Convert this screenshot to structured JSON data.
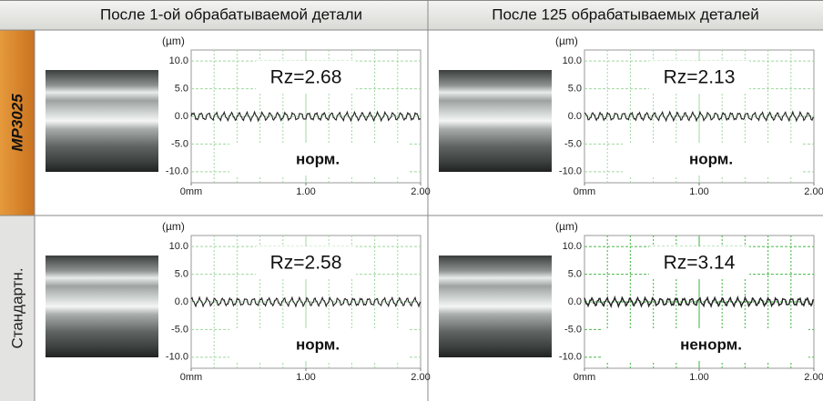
{
  "header": {
    "columns": [
      "После 1-ой обрабатываемой детали",
      "После 125 обрабатываемых деталей"
    ]
  },
  "rows": [
    {
      "label": "MP3025",
      "cells": [
        {
          "y_label": "(µm)",
          "ylim": [
            -12,
            12
          ],
          "xlim": [
            0,
            2
          ],
          "yticks": [
            {
              "value": 10,
              "label": "10.0"
            },
            {
              "value": 5,
              "label": "5.0"
            },
            {
              "value": 0,
              "label": "0.0"
            },
            {
              "value": -5,
              "label": "-5.0"
            },
            {
              "value": -10,
              "label": "-10.0"
            }
          ],
          "xticks": [
            {
              "value": 0,
              "label": "0mm"
            },
            {
              "value": 1,
              "label": "1.00"
            },
            {
              "value": 2,
              "label": "2.00"
            }
          ],
          "rz": "Rz=2.68",
          "verdict": "норм."
        },
        {
          "y_label": "(µm)",
          "ylim": [
            -12,
            12
          ],
          "xlim": [
            0,
            2
          ],
          "yticks": [
            {
              "value": 10,
              "label": "10.0"
            },
            {
              "value": 5,
              "label": "5.0"
            },
            {
              "value": 0,
              "label": "0.0"
            },
            {
              "value": -5,
              "label": "-5.0"
            },
            {
              "value": -10,
              "label": "-10.0"
            }
          ],
          "xticks": [
            {
              "value": 0,
              "label": "0mm"
            },
            {
              "value": 1,
              "label": "1.00"
            },
            {
              "value": 2,
              "label": "2.00"
            }
          ],
          "rz": "Rz=2.13",
          "verdict": "норм."
        }
      ]
    },
    {
      "label": "Стандартн.",
      "cells": [
        {
          "y_label": "(µm)",
          "ylim": [
            -12,
            12
          ],
          "xlim": [
            0,
            2
          ],
          "yticks": [
            {
              "value": 10,
              "label": "10.0"
            },
            {
              "value": 5,
              "label": "5.0"
            },
            {
              "value": 0,
              "label": "0.0"
            },
            {
              "value": -5,
              "label": "-5.0"
            },
            {
              "value": -10,
              "label": "-10.0"
            }
          ],
          "xticks": [
            {
              "value": 0,
              "label": "0mm"
            },
            {
              "value": 1,
              "label": "1.00"
            },
            {
              "value": 2,
              "label": "2.00"
            }
          ],
          "rz": "Rz=2.58",
          "verdict": "норм."
        },
        {
          "y_label": "(µm)",
          "ylim": [
            -12,
            12
          ],
          "xlim": [
            0,
            2
          ],
          "yticks": [
            {
              "value": 10,
              "label": "10.0"
            },
            {
              "value": 5,
              "label": "5.0"
            },
            {
              "value": 0,
              "label": "0.0"
            },
            {
              "value": -5,
              "label": "-5.0"
            },
            {
              "value": -10,
              "label": "-10.0"
            }
          ],
          "xticks": [
            {
              "value": 0,
              "label": "0mm"
            },
            {
              "value": 1,
              "label": "1.00"
            },
            {
              "value": 2,
              "label": "2.00"
            }
          ],
          "rz": "Rz=3.14",
          "verdict": "ненорм."
        }
      ]
    }
  ]
}
